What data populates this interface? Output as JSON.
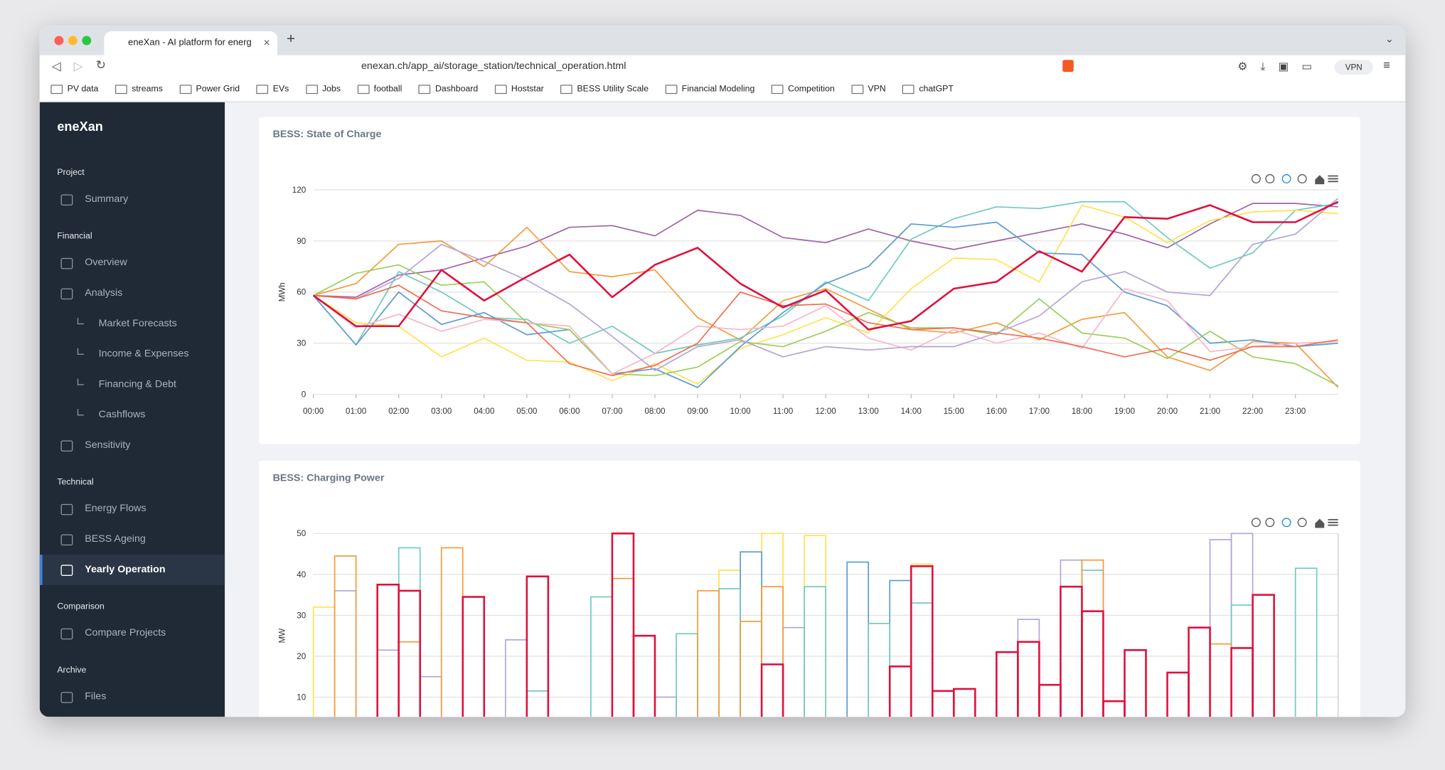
{
  "browser": {
    "tab_title": "eneXan - AI platform for energ",
    "url": "enexan.ch/app_ai/storage_station/technical_operation.html",
    "vpn": "VPN",
    "bookmarks": [
      "PV data",
      "streams",
      "Power Grid",
      "EVs",
      "Jobs",
      "football",
      "Dashboard",
      "Hoststar",
      "BESS Utility Scale",
      "Financial Modeling",
      "Competition",
      "VPN",
      "chatGPT"
    ]
  },
  "sidebar": {
    "brand": "eneXan",
    "groups": [
      {
        "label": "Project",
        "items": [
          {
            "label": "Summary"
          }
        ]
      },
      {
        "label": "Financial",
        "items": [
          {
            "label": "Overview"
          },
          {
            "label": "Analysis"
          },
          {
            "label": "Market Forecasts",
            "sub": true
          },
          {
            "label": "Income & Expenses",
            "sub": true
          },
          {
            "label": "Financing & Debt",
            "sub": true
          },
          {
            "label": "Cashflows",
            "sub": true
          },
          {
            "label": "Sensitivity"
          }
        ]
      },
      {
        "label": "Technical",
        "items": [
          {
            "label": "Energy Flows"
          },
          {
            "label": "BESS Ageing"
          },
          {
            "label": "Yearly Operation",
            "active": true
          }
        ]
      },
      {
        "label": "Comparison",
        "items": [
          {
            "label": "Compare Projects"
          }
        ]
      },
      {
        "label": "Archive",
        "items": [
          {
            "label": "Files"
          }
        ]
      }
    ]
  },
  "chart_data": [
    {
      "type": "line",
      "title": "BESS: State of Charge",
      "ylabel": "MWh",
      "ylim": [
        0,
        120
      ],
      "yticks": [
        0,
        30,
        60,
        90,
        120
      ],
      "grid": true,
      "xlim": [
        0,
        24
      ],
      "xticks": [
        {
          "value": 0,
          "label": "00:00"
        },
        {
          "value": 1,
          "label": "01:00"
        },
        {
          "value": 2,
          "label": "02:00"
        },
        {
          "value": 3,
          "label": "03:00"
        },
        {
          "value": 4,
          "label": "04:00"
        },
        {
          "value": 5,
          "label": "05:00"
        },
        {
          "value": 6,
          "label": "06:00"
        },
        {
          "value": 7,
          "label": "07:00"
        },
        {
          "value": 8,
          "label": "08:00"
        },
        {
          "value": 9,
          "label": "09:00"
        },
        {
          "value": 10,
          "label": "10:00"
        },
        {
          "value": 11,
          "label": "11:00"
        },
        {
          "value": 12,
          "label": "12:00"
        },
        {
          "value": 13,
          "label": "13:00"
        },
        {
          "value": 14,
          "label": "14:00"
        },
        {
          "value": 15,
          "label": "15:00"
        },
        {
          "value": 16,
          "label": "16:00"
        },
        {
          "value": 17,
          "label": "17:00"
        },
        {
          "value": 18,
          "label": "18:00"
        },
        {
          "value": 19,
          "label": "19:00"
        },
        {
          "value": 20,
          "label": "20:00"
        },
        {
          "value": 21,
          "label": "21:00"
        },
        {
          "value": 22,
          "label": "22:00"
        },
        {
          "value": 23,
          "label": "23:00"
        }
      ],
      "x": [
        0,
        1,
        2,
        3,
        4,
        5,
        6,
        7,
        8,
        9,
        10,
        11,
        12,
        13,
        14,
        15,
        16,
        17,
        18,
        19,
        20,
        21,
        22,
        23,
        24
      ],
      "series": [
        {
          "color": "#a262a6",
          "values": [
            58,
            57,
            70,
            73,
            80,
            87,
            98,
            99,
            93,
            108,
            105,
            92,
            89,
            97,
            90,
            85,
            90,
            95,
            100,
            94,
            86,
            100,
            112,
            112,
            110
          ]
        },
        {
          "color": "#f59a3a",
          "values": [
            58,
            65,
            88,
            90,
            75,
            98,
            72,
            69,
            73,
            45,
            32,
            55,
            62,
            50,
            38,
            36,
            42,
            32,
            44,
            48,
            22,
            14,
            31,
            30,
            4
          ]
        },
        {
          "color": "#6fcabd",
          "values": [
            58,
            29,
            72,
            60,
            45,
            44,
            30,
            40,
            24,
            29,
            33,
            46,
            66,
            55,
            91,
            103,
            110,
            109,
            113,
            113,
            92,
            74,
            83,
            108,
            112
          ]
        },
        {
          "color": "#ffe24d",
          "values": [
            58,
            42,
            40,
            22,
            33,
            20,
            19,
            8,
            18,
            6,
            27,
            35,
            45,
            36,
            62,
            80,
            79,
            66,
            111,
            104,
            89,
            102,
            107,
            108,
            106
          ]
        },
        {
          "color": "#5a9bd4",
          "values": [
            58,
            29,
            60,
            41,
            48,
            35,
            38,
            12,
            15,
            4,
            28,
            48,
            65,
            75,
            100,
            98,
            101,
            83,
            82,
            60,
            52,
            30,
            32,
            28,
            30
          ]
        },
        {
          "color": "#9ccd59",
          "values": [
            58,
            71,
            76,
            64,
            66,
            42,
            38,
            12,
            11,
            16,
            31,
            28,
            37,
            48,
            39,
            39,
            35,
            56,
            36,
            33,
            21,
            37,
            22,
            18,
            5
          ]
        },
        {
          "color": "#f7b6c8",
          "values": [
            58,
            39,
            47,
            37,
            44,
            42,
            40,
            12,
            24,
            40,
            38,
            40,
            52,
            33,
            26,
            38,
            30,
            36,
            27,
            62,
            55,
            25,
            28,
            30,
            31
          ]
        },
        {
          "color": "#b5a4d4",
          "values": [
            58,
            56,
            68,
            88,
            78,
            67,
            53,
            34,
            14,
            28,
            32,
            22,
            28,
            26,
            28,
            28,
            36,
            46,
            66,
            72,
            60,
            58,
            88,
            94,
            115
          ]
        },
        {
          "color": "#f06c50",
          "values": [
            58,
            56,
            64,
            49,
            45,
            42,
            18,
            11,
            17,
            30,
            60,
            52,
            53,
            42,
            38,
            39,
            36,
            33,
            28,
            22,
            27,
            20,
            28,
            28,
            32
          ]
        },
        {
          "color": "#e0103c",
          "width": 2,
          "values": [
            58,
            40,
            40,
            73,
            55,
            69,
            82,
            57,
            76,
            86,
            65,
            51,
            61,
            38,
            43,
            62,
            66,
            84,
            72,
            104,
            103,
            111,
            101,
            101,
            113
          ]
        }
      ]
    },
    {
      "type": "bar",
      "title": "BESS: Charging Power",
      "ylabel": "MW",
      "ylim": [
        0,
        50
      ],
      "yticks": [
        10,
        20,
        30,
        40,
        50
      ],
      "grid": true,
      "xlim": [
        0,
        24
      ],
      "bar_width": 0.5,
      "x": [
        0,
        0.5,
        1,
        1.5,
        2,
        2.5,
        3,
        3.5,
        4,
        4.5,
        5,
        5.5,
        6,
        6.5,
        7,
        7.5,
        8,
        8.5,
        9,
        9.5,
        10,
        10.5,
        11,
        11.5,
        12,
        12.5,
        13,
        13.5,
        14,
        14.5,
        15,
        15.5,
        16,
        16.5,
        17,
        17.5,
        18,
        18.5,
        19,
        19.5,
        20,
        20.5,
        21,
        21.5,
        22,
        22.5,
        23,
        23.5
      ],
      "series": [
        {
          "color": "#ffe24d",
          "values": [
            32,
            null,
            null,
            null,
            null,
            null,
            null,
            null,
            null,
            null,
            null,
            null,
            null,
            null,
            null,
            null,
            null,
            null,
            null,
            41,
            null,
            50,
            null,
            49.5,
            null,
            null,
            null,
            null,
            42.5,
            null,
            null,
            null,
            null,
            null,
            null,
            null,
            null,
            null,
            null,
            null,
            null,
            null,
            null,
            null,
            null,
            null,
            null,
            null
          ]
        },
        {
          "color": "#5a9bd4",
          "values": [
            null,
            null,
            null,
            null,
            null,
            null,
            null,
            null,
            null,
            null,
            null,
            null,
            null,
            null,
            null,
            null,
            null,
            null,
            null,
            null,
            45.5,
            null,
            null,
            null,
            null,
            43,
            null,
            38.5,
            null,
            null,
            null,
            null,
            null,
            null,
            null,
            null,
            null,
            null,
            null,
            null,
            null,
            null,
            null,
            null,
            null,
            null,
            null,
            null
          ]
        },
        {
          "color": "#b5a4d4",
          "values": [
            null,
            36,
            null,
            21.5,
            null,
            15,
            null,
            null,
            null,
            24,
            null,
            null,
            null,
            null,
            null,
            null,
            10,
            null,
            null,
            null,
            null,
            null,
            27,
            null,
            null,
            null,
            null,
            null,
            null,
            null,
            null,
            null,
            null,
            29,
            null,
            43.5,
            null,
            null,
            null,
            null,
            null,
            null,
            48.5,
            50,
            null,
            null,
            null,
            null
          ]
        },
        {
          "color": "#6fcabd",
          "values": [
            null,
            null,
            null,
            null,
            46.5,
            null,
            null,
            null,
            null,
            null,
            11.5,
            null,
            null,
            34.5,
            null,
            null,
            null,
            25.5,
            null,
            36.5,
            null,
            null,
            null,
            37,
            null,
            null,
            28,
            null,
            33,
            null,
            null,
            null,
            null,
            null,
            null,
            null,
            41,
            null,
            null,
            null,
            null,
            null,
            null,
            32.5,
            null,
            null,
            41.5,
            null
          ]
        },
        {
          "color": "#f59a3a",
          "values": [
            null,
            44.5,
            null,
            null,
            23.5,
            null,
            46.5,
            null,
            null,
            null,
            null,
            null,
            null,
            null,
            39,
            null,
            null,
            null,
            36,
            null,
            28.5,
            37,
            null,
            null,
            null,
            null,
            null,
            null,
            null,
            null,
            null,
            null,
            null,
            null,
            null,
            null,
            43.5,
            null,
            null,
            null,
            null,
            null,
            23,
            null,
            null,
            null,
            null,
            null
          ]
        },
        {
          "color": "#e0103c",
          "width": 2,
          "values": [
            null,
            null,
            null,
            37.5,
            36,
            null,
            null,
            34.5,
            null,
            null,
            39.5,
            null,
            null,
            null,
            50,
            25,
            null,
            null,
            null,
            null,
            null,
            18,
            null,
            null,
            null,
            null,
            null,
            17.5,
            42,
            11.5,
            12,
            null,
            21,
            23.5,
            13,
            37,
            31,
            9,
            21.5,
            null,
            16,
            27,
            null,
            22,
            35,
            null,
            null,
            null
          ]
        }
      ]
    }
  ]
}
